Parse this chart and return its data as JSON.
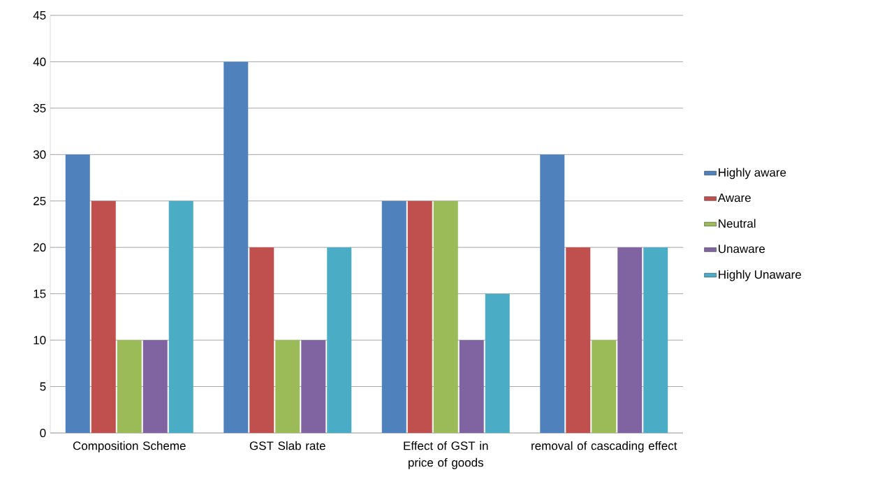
{
  "chart_data": {
    "type": "bar",
    "categories": [
      "Composition Scheme",
      "GST Slab rate",
      "Effect of GST in price of goods",
      "removal of cascading effect"
    ],
    "series": [
      {
        "name": "Highly aware",
        "color": "#4f81bd",
        "values": [
          30,
          40,
          25,
          30
        ]
      },
      {
        "name": "Aware",
        "color": "#c0504d",
        "values": [
          25,
          20,
          25,
          20
        ]
      },
      {
        "name": "Neutral",
        "color": "#9bbb59",
        "values": [
          10,
          10,
          25,
          10
        ]
      },
      {
        "name": "Unaware",
        "color": "#8064a2",
        "values": [
          10,
          10,
          10,
          20
        ]
      },
      {
        "name": "Highly Unaware",
        "color": "#4bacc6",
        "values": [
          25,
          20,
          15,
          20
        ]
      }
    ],
    "ylim": [
      0,
      45
    ],
    "yticks": [
      0,
      5,
      10,
      15,
      20,
      25,
      30,
      35,
      40,
      45
    ],
    "grid": "y",
    "legend": "right"
  }
}
